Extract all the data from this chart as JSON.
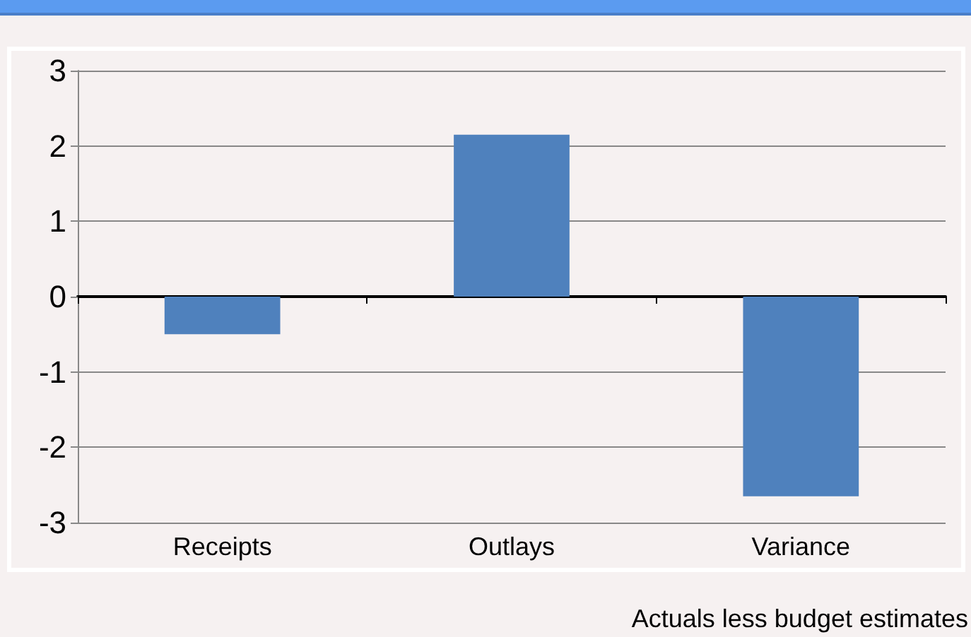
{
  "chart_data": {
    "type": "bar",
    "categories": [
      "Receipts",
      "Outlays",
      "Variance"
    ],
    "values": [
      -0.5,
      2.15,
      -2.65
    ],
    "color": "#4f81bd",
    "ylim": [
      -3,
      3
    ],
    "yticks": [
      -3,
      -2,
      -1,
      0,
      1,
      2,
      3
    ],
    "grid": "y",
    "annotations": [
      "Actuals less budget estimates"
    ]
  }
}
